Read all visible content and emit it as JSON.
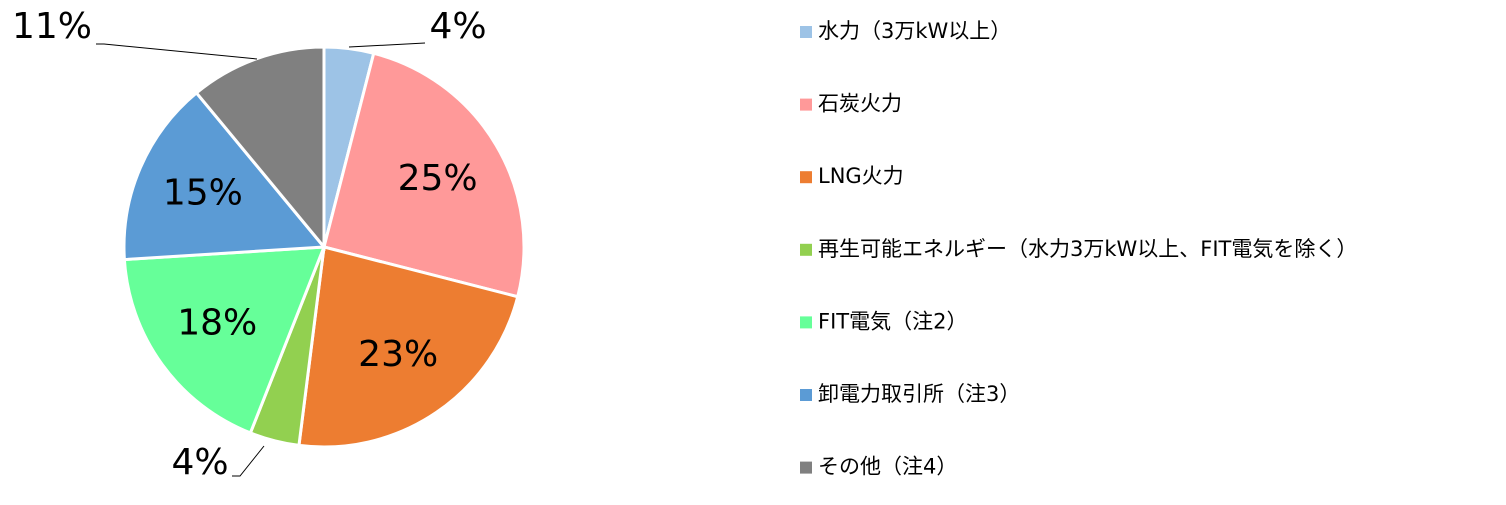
{
  "chart_data": {
    "type": "pie",
    "categories": [
      "水力（3万kW以上）",
      "石炭火力",
      "LNG火力",
      "再生可能エネルギー（水力3万kW以上、FIT電気を除く）",
      "FIT電気（注2）",
      "卸電力取引所（注3）",
      "その他（注4）"
    ],
    "values": [
      4,
      25,
      23,
      4,
      18,
      15,
      11
    ],
    "value_labels": [
      "4%",
      "25%",
      "23%",
      "4%",
      "18%",
      "15%",
      "11%"
    ],
    "colors": [
      "#9dc3e6",
      "#ff9999",
      "#ed7d31",
      "#92d050",
      "#66ff99",
      "#5b9bd5",
      "#808080"
    ],
    "legend": "right"
  }
}
